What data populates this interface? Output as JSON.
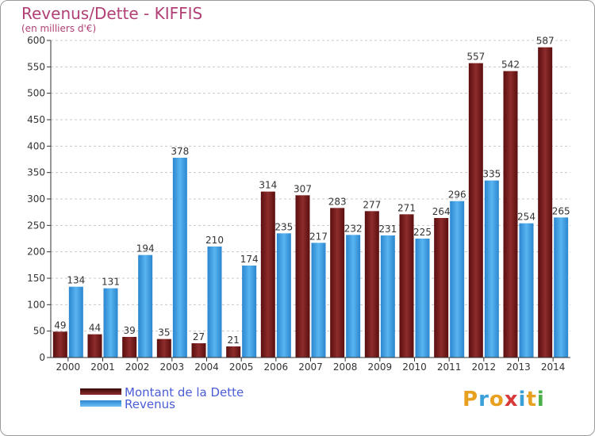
{
  "chart_data": {
    "type": "bar",
    "title": "Revenus/Dette - KIFFIS",
    "subtitle": "(en milliers d'€)",
    "categories": [
      "2000",
      "2001",
      "2002",
      "2003",
      "2004",
      "2005",
      "2006",
      "2007",
      "2008",
      "2009",
      "2010",
      "2011",
      "2012",
      "2013",
      "2014"
    ],
    "series": [
      {
        "name": "Montant de la Dette",
        "color": "#7a1a1a",
        "values": [
          49,
          44,
          39,
          35,
          27,
          21,
          314,
          307,
          283,
          277,
          271,
          264,
          557,
          542,
          587
        ]
      },
      {
        "name": "Revenus",
        "color": "#3d9be0",
        "values": [
          134,
          131,
          194,
          378,
          210,
          174,
          235,
          217,
          232,
          231,
          225,
          296,
          335,
          254,
          265
        ]
      }
    ],
    "ylim": [
      0,
      600
    ],
    "yticks": [
      0,
      50,
      100,
      150,
      200,
      250,
      300,
      350,
      400,
      450,
      500,
      550,
      600
    ],
    "grid": true,
    "legend": "bottom-left"
  },
  "legend": {
    "dette_label": "Montant de la Dette",
    "revenus_label": "Revenus"
  },
  "logo": {
    "letters": [
      "P",
      "r",
      "o",
      "x",
      "i",
      "t",
      "i"
    ],
    "colors": [
      "#e8a020",
      "#3aa0d8",
      "#e8a020",
      "#d83a3a",
      "#3aa0d8",
      "#e8a020",
      "#4ab04a"
    ]
  }
}
